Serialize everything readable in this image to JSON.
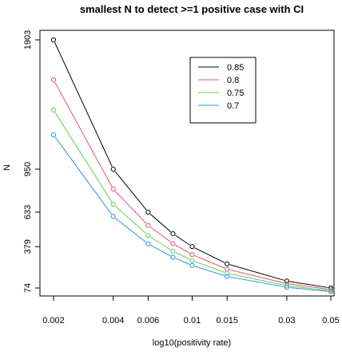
{
  "chart_data": {
    "type": "line",
    "title": "smallest N to detect >=1 positive case with CI",
    "xlabel": "log10(positivity rate)",
    "ylabel": "N",
    "x": [
      0.002,
      0.004,
      0.006,
      0.008,
      0.01,
      0.015,
      0.03,
      0.05
    ],
    "x_scale": "log",
    "xticks": [
      0.002,
      0.004,
      0.006,
      0.01,
      0.015,
      0.03,
      0.05
    ],
    "xtick_labels": [
      "0.002",
      "0.004",
      "0.006",
      "0.01",
      "0.015",
      "0.03",
      "0.05"
    ],
    "yticks": [
      74,
      379,
      633,
      950,
      1903
    ],
    "ytick_labels": [
      "74",
      "379",
      "633",
      "950",
      "1903"
    ],
    "ylim": [
      74,
      1903
    ],
    "grid": false,
    "legend_position": "top-right",
    "series": [
      {
        "name": "0.85",
        "color": "#000000",
        "values": [
          1903,
          950,
          633,
          474,
          379,
          252,
          125,
          74
        ]
      },
      {
        "name": "0.8",
        "color": "#df536b",
        "values": [
          1609,
          803,
          535,
          401,
          320,
          213,
          106,
          63
        ]
      },
      {
        "name": "0.75",
        "color": "#61d04f",
        "values": [
          1386,
          692,
          461,
          345,
          276,
          183,
          91,
          54
        ]
      },
      {
        "name": "0.7",
        "color": "#2297e6",
        "values": [
          1203,
          601,
          400,
          300,
          240,
          159,
          79,
          47
        ]
      }
    ]
  }
}
